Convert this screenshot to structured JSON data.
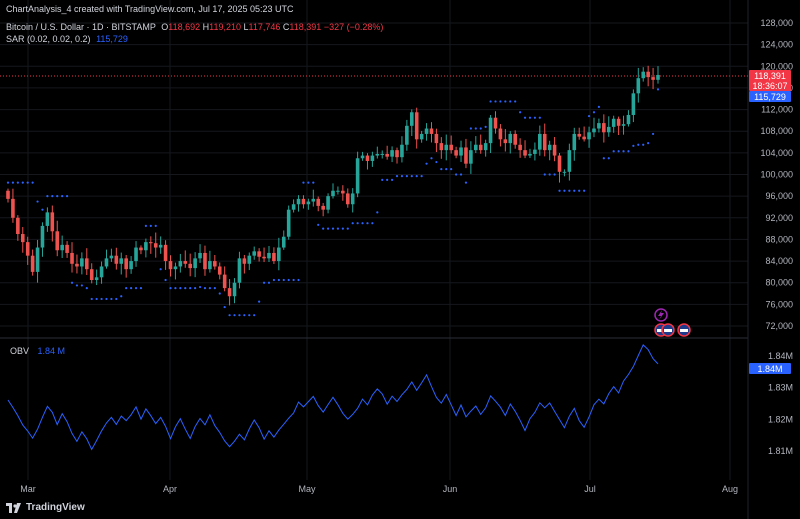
{
  "header": {
    "attribution": "ChartAnalysis_4 created with TradingView.com, Jul 17, 2025 05:23 UTC",
    "symbol": "Bitcoin / U.S. Dollar · 1D · BITSTAMP",
    "o_label": "O",
    "o_value": "118,692",
    "h_label": "H",
    "h_value": "119,210",
    "l_label": "L",
    "l_value": "117,746",
    "c_label": "C",
    "c_value": "118,391",
    "change": "−327 (−0.28%)",
    "sar_label": "SAR (0.02, 0.02, 0.2)",
    "sar_value": "115,729",
    "obv_label": "OBV",
    "obv_value": "1.84 M"
  },
  "badges": {
    "price": "118,391",
    "countdown": "18:36:07",
    "sar": "115,729",
    "obv": "1.84M"
  },
  "footer": {
    "brand": "TradingView"
  },
  "colors": {
    "up": "#26a69a",
    "down": "#ef5350",
    "sar": "#2962ff",
    "obv": "#2962ff",
    "badge_price": "#f23645"
  },
  "chart_data": [
    {
      "type": "candlestick",
      "title": "Bitcoin / U.S. Dollar · 1D · BITSTAMP",
      "ylim": [
        68000,
        130000
      ],
      "y_ticks": [
        "128,000",
        "124,000",
        "120,000",
        "116,000",
        "112,000",
        "108,000",
        "104,000",
        "100,000",
        "96,000",
        "92,000",
        "88,000",
        "84,000",
        "80,000",
        "76,000",
        "72,000"
      ],
      "x_ticks": [
        "Mar",
        "Apr",
        "May",
        "Jun",
        "Jul",
        "Aug"
      ],
      "last_price": 118391,
      "close": [
        95500,
        92000,
        89000,
        87500,
        85000,
        82000,
        86500,
        90500,
        93000,
        89500,
        86000,
        87000,
        85500,
        83500,
        83000,
        84500,
        82500,
        80500,
        81000,
        83000,
        84500,
        85000,
        83500,
        84500,
        82500,
        84000,
        86500,
        86000,
        87500,
        87300,
        86500,
        87000,
        84000,
        82500,
        83000,
        84000,
        83500,
        82700,
        84500,
        85500,
        82500,
        84000,
        83000,
        81500,
        79000,
        77500,
        80000,
        84500,
        83500,
        85000,
        85800,
        84800,
        84500,
        85500,
        84000,
        86500,
        88500,
        93500,
        94500,
        95500,
        94500,
        95000,
        95500,
        94200,
        93500,
        96000,
        97000,
        97000,
        96500,
        94500,
        96500,
        103000,
        103500,
        102500,
        103500,
        103800,
        103800,
        103300,
        104500,
        103200,
        105500,
        109000,
        111500,
        106500,
        107500,
        108500,
        107500,
        105800,
        104500,
        105500,
        104500,
        103500,
        105000,
        102000,
        104500,
        105500,
        104500,
        105800,
        110500,
        108500,
        106500,
        105800,
        107500,
        105500,
        104500,
        103500,
        103800,
        104600,
        107500,
        104500,
        105500,
        103500,
        100500,
        100500,
        104500,
        107500,
        107000,
        106500,
        107800,
        108500,
        109500,
        107800,
        108800,
        110300,
        109000,
        109300,
        111000,
        115000,
        117800,
        119000,
        118000,
        117500,
        118391
      ],
      "sar": [
        null,
        null,
        null,
        null,
        null,
        null,
        null,
        null,
        null,
        null,
        null,
        null,
        null,
        null,
        null,
        null,
        null,
        null,
        null,
        null,
        null,
        null,
        null,
        null,
        null,
        null,
        null,
        null,
        null,
        null,
        null,
        null,
        null,
        null,
        null,
        null,
        null,
        null,
        null,
        null,
        null,
        null,
        null,
        null,
        null,
        null,
        null,
        null,
        null,
        null,
        null,
        null,
        null,
        null,
        null,
        null,
        null,
        null,
        null,
        null,
        null,
        null,
        null,
        null,
        null,
        null,
        null,
        null,
        null,
        null,
        null,
        null,
        null,
        null,
        null,
        null,
        null,
        null,
        null,
        null,
        null,
        null,
        null,
        null,
        null,
        null,
        null,
        null,
        null,
        null,
        null,
        null,
        null,
        null,
        null,
        null,
        null,
        null,
        null,
        null,
        null,
        null,
        null,
        null,
        null,
        null,
        null,
        null,
        null,
        null,
        null,
        null,
        null,
        null,
        null,
        null,
        null,
        null,
        null,
        null,
        null,
        null,
        null,
        null,
        null,
        null,
        null,
        null,
        null,
        null,
        null,
        115729
      ],
      "obv_ylim": [
        1.806,
        1.845
      ],
      "obv_ticks": [
        "1.84M",
        "1.83M",
        "1.82M",
        "1.81M"
      ],
      "obv_last": 1.84
    }
  ]
}
